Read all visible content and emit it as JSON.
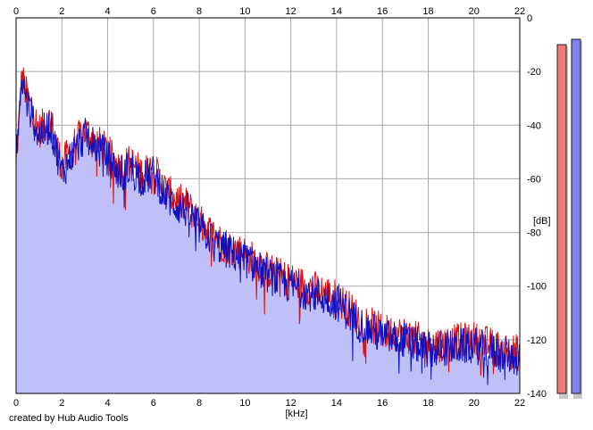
{
  "chart_data": {
    "type": "line",
    "xlabel": "[kHz]",
    "ylabel": "[dB]",
    "xlim": [
      0,
      22
    ],
    "ylim": [
      -140,
      0
    ],
    "x_ticks": [
      0,
      2,
      4,
      6,
      8,
      10,
      12,
      14,
      16,
      18,
      20,
      22
    ],
    "y_ticks": [
      0,
      -20,
      -40,
      -60,
      -80,
      -100,
      -120,
      -140
    ],
    "x_tick_labels": [
      "0",
      "2",
      "4",
      "6",
      "8",
      "10",
      "12",
      "14",
      "16",
      "18",
      "20",
      "22"
    ],
    "y_tick_labels": [
      "0",
      "-20",
      "-40",
      "-60",
      "-80",
      "-100",
      "-120",
      "-140"
    ],
    "grid": true,
    "series": [
      {
        "color": "#e01010",
        "x": [
          0,
          0.25,
          0.5,
          1,
          1.5,
          2,
          2.5,
          3,
          3.5,
          4,
          4.5,
          5,
          5.5,
          6,
          6.5,
          7,
          7.5,
          8,
          8.5,
          9,
          9.5,
          10,
          11,
          12,
          13,
          14,
          15,
          16,
          17,
          18,
          19,
          20,
          21,
          22
        ],
        "y": [
          -55,
          -22,
          -30,
          -42,
          -38,
          -55,
          -48,
          -42,
          -46,
          -50,
          -56,
          -54,
          -58,
          -56,
          -64,
          -68,
          -70,
          -76,
          -80,
          -84,
          -86,
          -88,
          -94,
          -98,
          -101,
          -104,
          -112,
          -117,
          -118,
          -122,
          -121,
          -120,
          -123,
          -125
        ]
      },
      {
        "color": "#1010c0",
        "x": [
          0,
          0.25,
          0.5,
          1,
          1.5,
          2,
          2.5,
          3,
          3.5,
          4,
          4.5,
          5,
          5.5,
          6,
          6.5,
          7,
          7.5,
          8,
          8.5,
          9,
          9.5,
          10,
          11,
          12,
          13,
          14,
          15,
          16,
          17,
          18,
          19,
          20,
          21,
          22
        ],
        "y": [
          -52,
          -24,
          -32,
          -44,
          -40,
          -58,
          -50,
          -44,
          -48,
          -52,
          -58,
          -56,
          -60,
          -58,
          -66,
          -70,
          -72,
          -78,
          -82,
          -86,
          -88,
          -90,
          -96,
          -100,
          -103,
          -106,
          -114,
          -119,
          -120,
          -124,
          -123,
          -122,
          -125,
          -127
        ]
      }
    ],
    "fill_color": "#c0c0f8",
    "level_meters": [
      {
        "color": "#f07878",
        "level_db": -10
      },
      {
        "color": "#8080f0",
        "level_db": -8
      }
    ]
  },
  "footer": {
    "credit": "created by Hub Audio Tools"
  }
}
